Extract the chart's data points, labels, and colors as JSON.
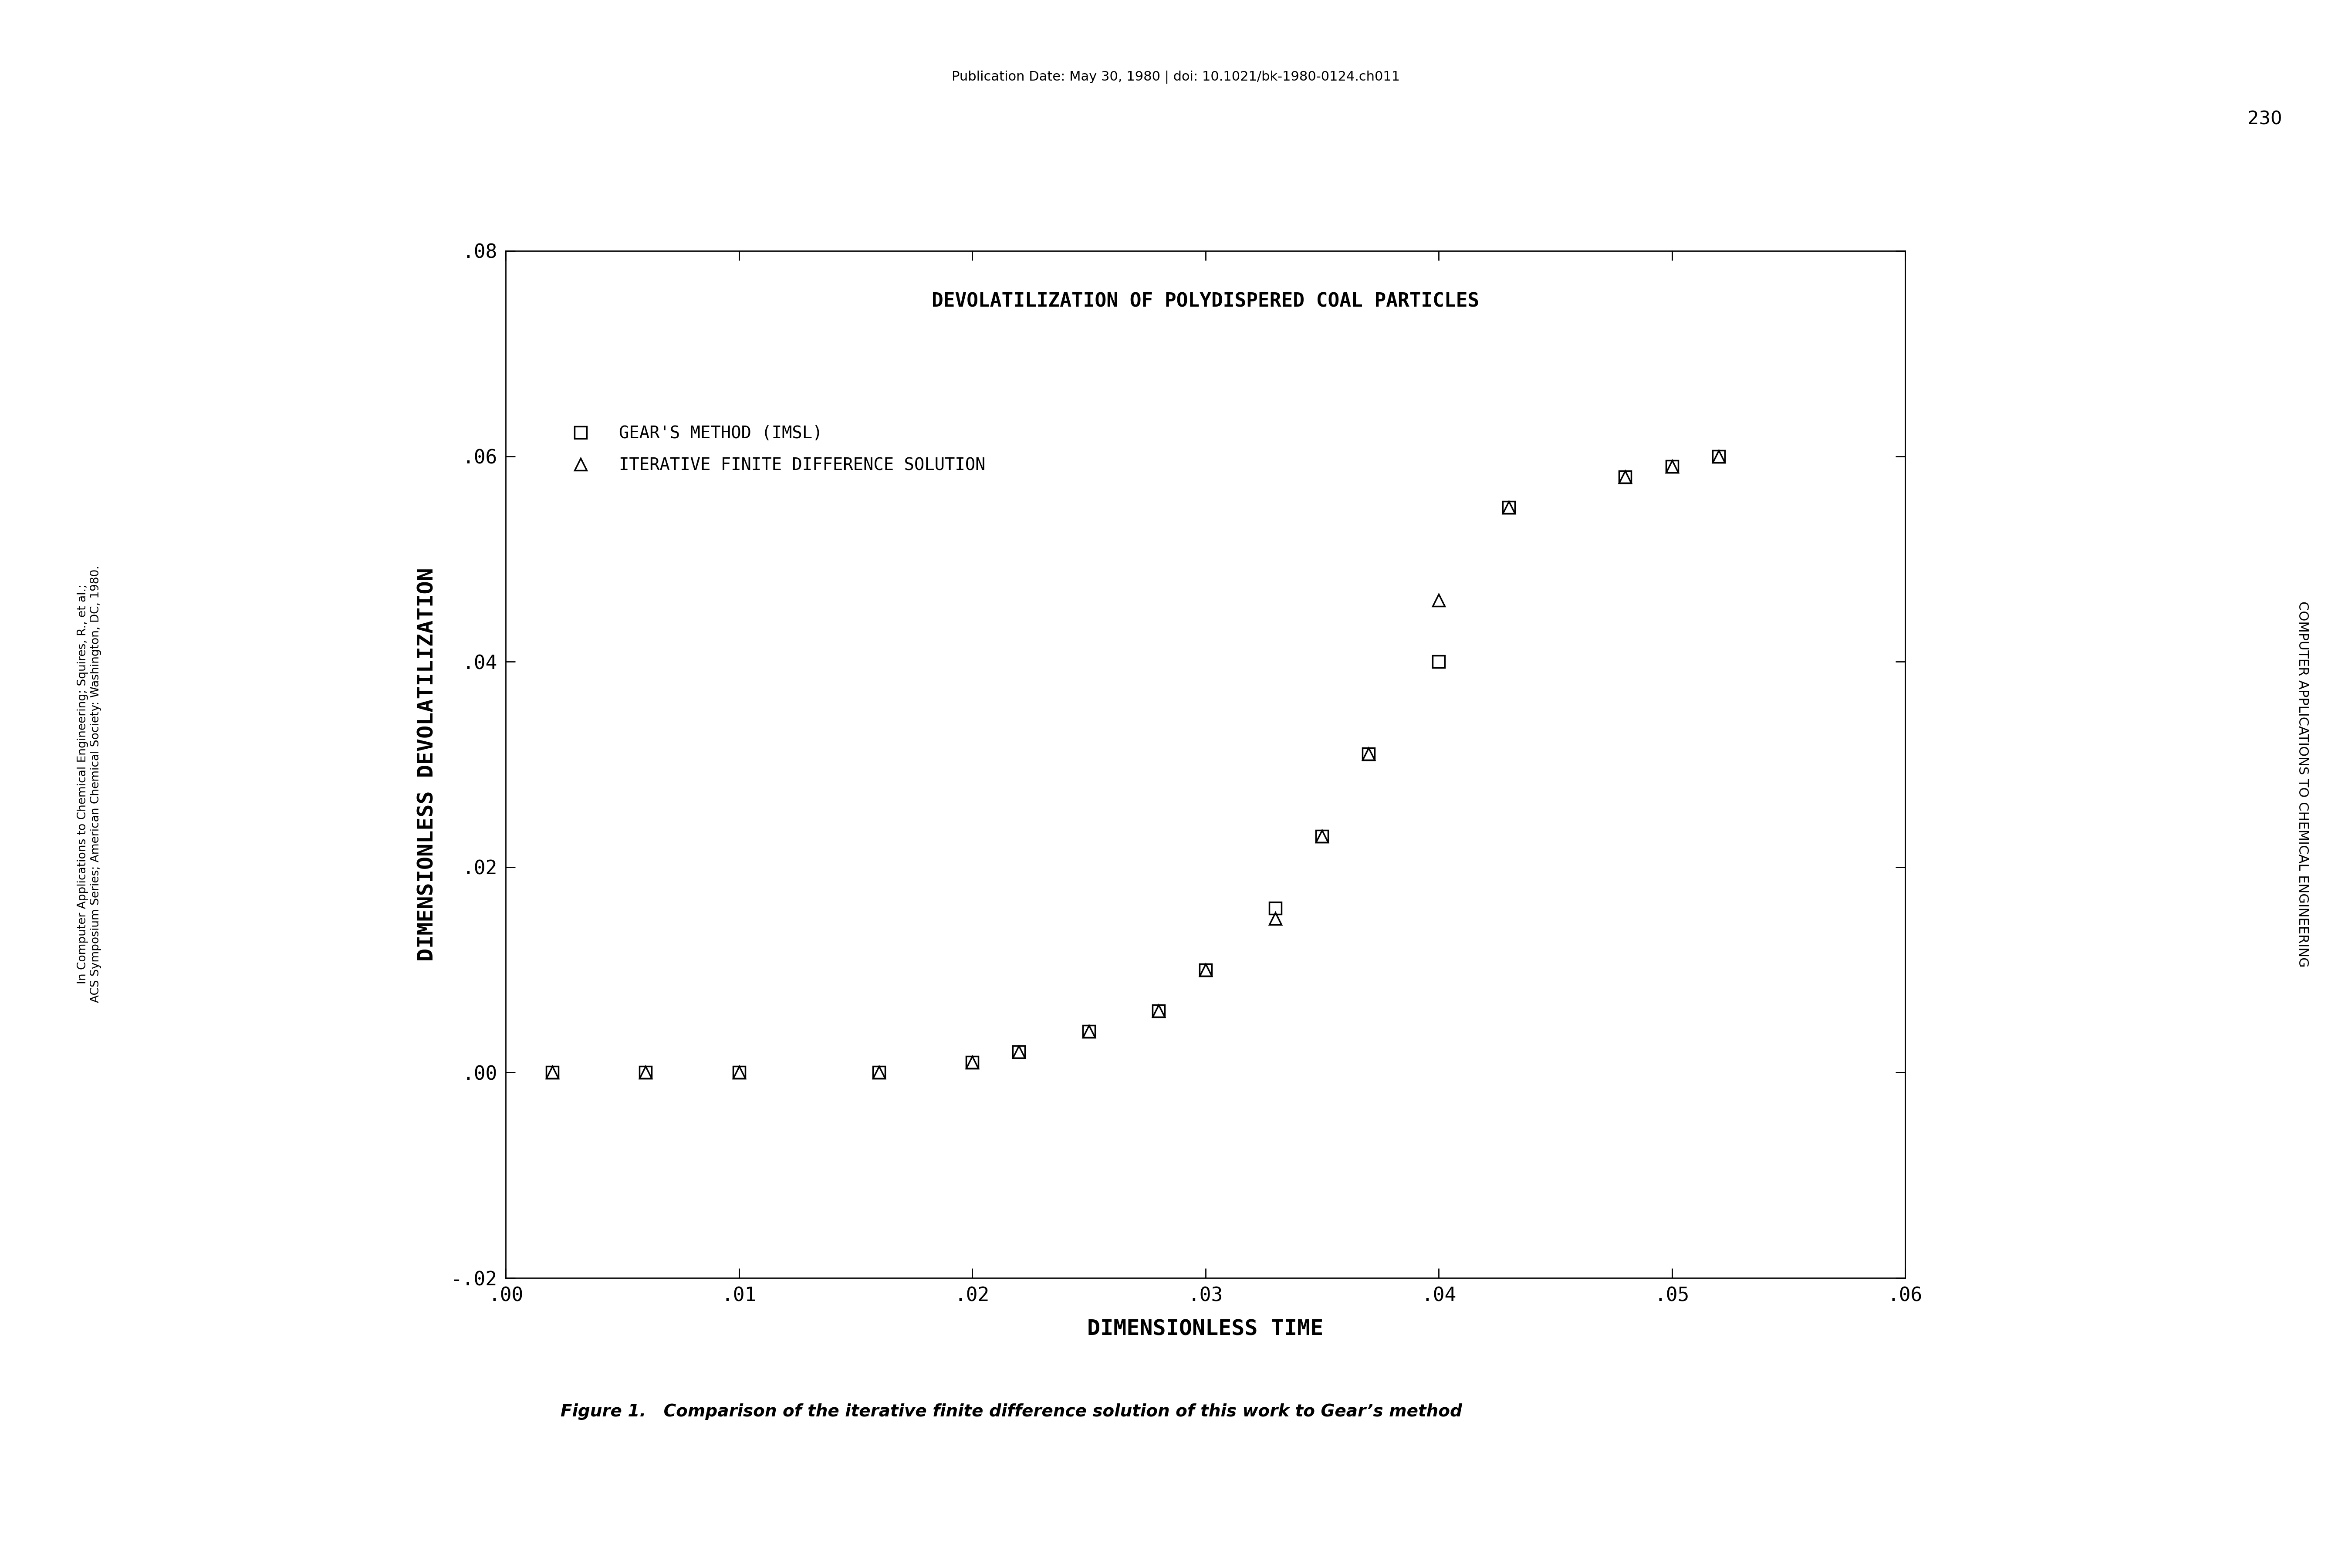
{
  "title": "DEVOLATILIZATION OF POLYDISPERED COAL PARTICLES",
  "xlabel": "DIMENSIONLESS TIME",
  "ylabel": "DIMENSIONLESS DEVOLATILIZATION",
  "xlim": [
    0.0,
    0.06
  ],
  "ylim": [
    -0.02,
    0.08
  ],
  "xticks": [
    0.0,
    0.01,
    0.02,
    0.03,
    0.04,
    0.05,
    0.06
  ],
  "yticks": [
    -0.02,
    0.0,
    0.02,
    0.04,
    0.06,
    0.08
  ],
  "xtick_labels": [
    ".00",
    ".01",
    ".02",
    ".03",
    ".04",
    ".05",
    ".06"
  ],
  "ytick_labels": [
    "-.02",
    ".00",
    ".02",
    ".04",
    ".06",
    ".08"
  ],
  "legend_entry_1": "GEAR'S METHOD (IMSL)",
  "legend_entry_2": "ITERATIVE FINITE DIFFERENCE SOLUTION",
  "gear_x": [
    0.002,
    0.006,
    0.01,
    0.016,
    0.02,
    0.022,
    0.025,
    0.028,
    0.03,
    0.033,
    0.035,
    0.037,
    0.04,
    0.043,
    0.048,
    0.05,
    0.052
  ],
  "gear_y": [
    0.0,
    0.0,
    0.0,
    0.0,
    0.001,
    0.002,
    0.004,
    0.006,
    0.01,
    0.016,
    0.023,
    0.031,
    0.04,
    0.055,
    0.058,
    0.059,
    0.06
  ],
  "iter_x": [
    0.002,
    0.006,
    0.01,
    0.016,
    0.02,
    0.022,
    0.025,
    0.028,
    0.03,
    0.033,
    0.035,
    0.037,
    0.04,
    0.043,
    0.048,
    0.05,
    0.052
  ],
  "iter_y": [
    0.0,
    0.0,
    0.0,
    0.0,
    0.001,
    0.002,
    0.004,
    0.006,
    0.01,
    0.015,
    0.023,
    0.031,
    0.046,
    0.055,
    0.058,
    0.059,
    0.06
  ],
  "top_text": "Publication Date: May 30, 1980 | doi: 10.1021/bk-1980-0124.ch011",
  "figure_caption": "Figure 1.   Comparison of the iterative finite difference solution of this work to Gear’s method",
  "right_num": "230",
  "right_vert": "COMPUTER APPLICATIONS TO CHEMICAL ENGINEERING",
  "left_vert": "In Computer Applications to Chemical Engineering; Squires, R., et al.;\nACS Symposium Series; American Chemical Society: Washington, DC, 1980.",
  "bg_color": "#ffffff",
  "black": "#000000"
}
